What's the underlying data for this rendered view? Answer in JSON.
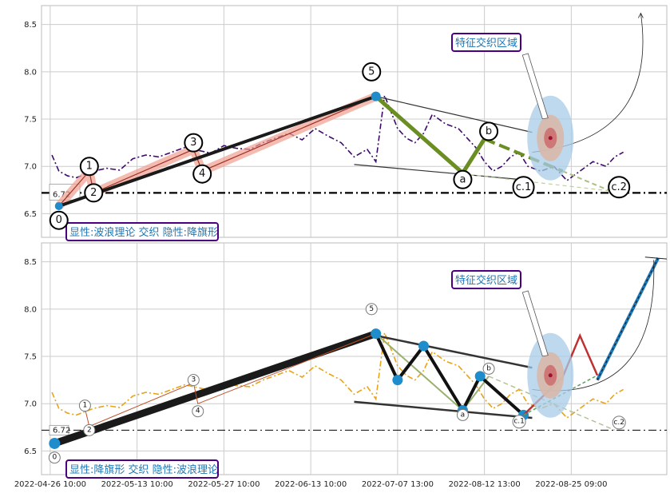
{
  "chart_data": [
    {
      "type": "line",
      "panel": "top",
      "ylim": [
        6.25,
        8.7
      ],
      "yticks": [
        6.5,
        7.0,
        7.5,
        8.0,
        8.5
      ],
      "grid": true,
      "reference_line": {
        "value": 6.72,
        "label": "6.72"
      },
      "price_series": {
        "color": "#3d0a6b",
        "x": [
          0.2,
          1.0,
          2.0,
          3.0,
          5.0,
          6.5,
          8.0,
          9.5,
          11.0,
          12.5,
          14.0,
          15.5,
          17.0,
          18.5,
          20.0,
          21.5,
          23.0,
          24.5,
          26.0,
          27.5,
          29.0,
          30.5,
          32.0,
          33.5,
          35.0,
          36.5,
          37.5,
          38.5,
          40.0,
          41.0,
          42.0,
          43.0,
          44.0,
          45.5,
          47.0,
          48.0,
          49.0,
          50.0,
          51.0,
          52.0,
          53.0,
          54.0,
          55.0,
          56.5,
          58.0,
          59.5,
          61.0,
          62.5,
          64.0,
          65.0,
          66.0
        ],
        "y": [
          7.12,
          6.95,
          6.9,
          6.88,
          6.95,
          6.98,
          6.96,
          7.08,
          7.12,
          7.1,
          7.15,
          7.2,
          7.17,
          7.14,
          7.22,
          7.19,
          7.18,
          7.25,
          7.3,
          7.35,
          7.28,
          7.4,
          7.32,
          7.25,
          7.1,
          7.18,
          7.05,
          7.75,
          7.4,
          7.3,
          7.25,
          7.35,
          7.55,
          7.45,
          7.4,
          7.3,
          7.2,
          7.05,
          6.95,
          7.0,
          7.1,
          7.15,
          7.0,
          6.95,
          7.0,
          6.85,
          6.95,
          7.05,
          7.0,
          7.1,
          7.15
        ]
      },
      "wave_labels": [
        {
          "label": "0",
          "x": 1.0,
          "y": 6.43
        },
        {
          "label": "1",
          "x": 4.5,
          "y": 7.0
        },
        {
          "label": "2",
          "x": 5.0,
          "y": 6.72
        },
        {
          "label": "3",
          "x": 16.5,
          "y": 7.25
        },
        {
          "label": "4",
          "x": 17.5,
          "y": 6.92
        },
        {
          "label": "5",
          "x": 37.0,
          "y": 8.0
        },
        {
          "label": "a",
          "x": 47.5,
          "y": 6.86
        },
        {
          "label": "b",
          "x": 50.5,
          "y": 7.37
        },
        {
          "label": "c.1",
          "x": 54.5,
          "y": 6.78
        },
        {
          "label": "c.2",
          "x": 65.5,
          "y": 6.78
        }
      ],
      "annotations": {
        "feature_zone": "特征交织区域",
        "pattern": "显性:波浪理论 交织 隐性:降旗形"
      }
    },
    {
      "type": "line",
      "panel": "bottom",
      "ylim": [
        6.25,
        8.7
      ],
      "yticks": [
        6.5,
        7.0,
        7.5,
        8.0,
        8.5
      ],
      "grid": true,
      "reference_line": {
        "value": 6.72,
        "label": "6.72"
      },
      "price_series": {
        "color": "#e8a317",
        "x": [
          0.2,
          1.0,
          2.0,
          3.0,
          5.0,
          6.5,
          8.0,
          9.5,
          11.0,
          12.5,
          14.0,
          15.5,
          17.0,
          18.5,
          20.0,
          21.5,
          23.0,
          24.5,
          26.0,
          27.5,
          29.0,
          30.5,
          32.0,
          33.5,
          35.0,
          36.5,
          37.5,
          38.5,
          40.0,
          41.0,
          42.0,
          43.0,
          44.0,
          45.5,
          47.0,
          48.0,
          49.0,
          50.0,
          51.0,
          52.0,
          53.0,
          54.0,
          55.0,
          56.5,
          58.0,
          59.5,
          61.0,
          62.5,
          64.0,
          65.0,
          66.0
        ],
        "y": [
          7.12,
          6.95,
          6.9,
          6.88,
          6.95,
          6.98,
          6.96,
          7.08,
          7.12,
          7.1,
          7.15,
          7.2,
          7.17,
          7.14,
          7.22,
          7.19,
          7.18,
          7.25,
          7.3,
          7.35,
          7.28,
          7.4,
          7.32,
          7.25,
          7.1,
          7.18,
          7.05,
          7.75,
          7.4,
          7.3,
          7.25,
          7.35,
          7.55,
          7.45,
          7.4,
          7.3,
          7.2,
          7.05,
          6.95,
          7.0,
          7.1,
          7.15,
          7.0,
          6.95,
          7.0,
          6.85,
          6.95,
          7.05,
          7.0,
          7.1,
          7.15
        ]
      },
      "wave_labels": [
        {
          "label": "0",
          "x": 0.5,
          "y": 6.43
        },
        {
          "label": "1",
          "x": 4.0,
          "y": 6.98
        },
        {
          "label": "2",
          "x": 4.5,
          "y": 6.72
        },
        {
          "label": "3",
          "x": 16.5,
          "y": 7.25
        },
        {
          "label": "4",
          "x": 17.0,
          "y": 6.92
        },
        {
          "label": "5",
          "x": 37.0,
          "y": 8.0
        },
        {
          "label": "a",
          "x": 47.5,
          "y": 6.88
        },
        {
          "label": "b",
          "x": 50.5,
          "y": 7.37
        },
        {
          "label": "c.1",
          "x": 54.0,
          "y": 6.81
        },
        {
          "label": "c.2",
          "x": 65.5,
          "y": 6.8
        }
      ],
      "flag_pivots": {
        "x": [
          37.5,
          40.0,
          43.0,
          47.5,
          49.5,
          54.5
        ],
        "y": [
          7.74,
          7.25,
          7.61,
          6.93,
          7.29,
          6.88
        ]
      },
      "annotations": {
        "feature_zone": "特征交织区域",
        "pattern": "显性:降旗形 交织 隐性:波浪理论"
      }
    }
  ],
  "x_tick_labels": [
    "2022-04-26 10:00",
    "2022-05-13 10:00",
    "2022-05-27 10:00",
    "2022-06-13 10:00",
    "2022-07-07 13:00",
    "2022-08-12 13:00",
    "2022-08-25 09:00"
  ],
  "x_tick_positions": [
    0,
    10,
    20,
    30,
    40,
    50,
    60
  ],
  "colors": {
    "grid": "#cccccc",
    "wave_main": "#1a1a1a",
    "wave_highlight": "#e06040",
    "correction_green": "#6b8e23",
    "pivot_blue": "#1f8ccc",
    "projection_blue": "#1f77b4",
    "annotation_border": "#4b0082",
    "annotation_text": "#1f77b4"
  }
}
